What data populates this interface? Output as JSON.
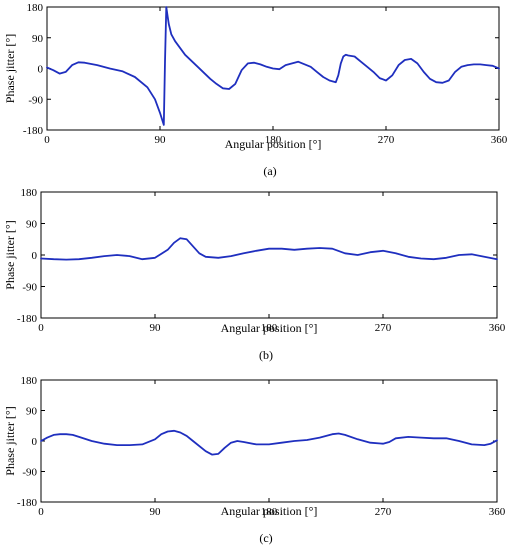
{
  "figure": {
    "caption_labels": [
      "(a)",
      "(b)",
      "(c)"
    ],
    "line_color": "#1f2fbf"
  },
  "chart_data": [
    {
      "type": "line",
      "panel_label": "(a)",
      "xlabel": "Angular position [°]",
      "ylabel": "Phase jitter [°]",
      "xlim": [
        0,
        360
      ],
      "ylim": [
        -180,
        180
      ],
      "xticks": [
        0,
        90,
        180,
        270,
        360
      ],
      "yticks": [
        180,
        90,
        0,
        -90,
        -180
      ],
      "grid": false,
      "series": [
        {
          "x": [
            0,
            5,
            10,
            15,
            20,
            25,
            30,
            40,
            50,
            60,
            70,
            80,
            86,
            90,
            93,
            94,
            95,
            96,
            97,
            99,
            102,
            110,
            120,
            130,
            135,
            140,
            145,
            150,
            155,
            160,
            165,
            170,
            175,
            180,
            185,
            190,
            200,
            210,
            215,
            220,
            225,
            230,
            232,
            234,
            236,
            238,
            240,
            245,
            250,
            255,
            260,
            265,
            270,
            275,
            280,
            285,
            290,
            295,
            300,
            305,
            310,
            315,
            320,
            325,
            330,
            335,
            340,
            345,
            350,
            355,
            360
          ],
          "y": [
            3,
            -5,
            -15,
            -10,
            10,
            18,
            17,
            10,
            0,
            -8,
            -25,
            -55,
            -90,
            -130,
            -165,
            20,
            180,
            155,
            130,
            100,
            80,
            40,
            5,
            -30,
            -45,
            -58,
            -60,
            -45,
            -5,
            15,
            17,
            12,
            5,
            0,
            -2,
            10,
            20,
            5,
            -10,
            -25,
            -35,
            -40,
            -20,
            15,
            35,
            40,
            38,
            35,
            20,
            5,
            -10,
            -28,
            -35,
            -20,
            10,
            25,
            28,
            15,
            -10,
            -30,
            -40,
            -42,
            -35,
            -10,
            5,
            10,
            12,
            12,
            10,
            8,
            0
          ]
        }
      ]
    },
    {
      "type": "line",
      "panel_label": "(b)",
      "xlabel": "Angular position [°]",
      "ylabel": "Phase jitter [°]",
      "xlim": [
        0,
        360
      ],
      "ylim": [
        -180,
        180
      ],
      "xticks": [
        0,
        90,
        180,
        270,
        360
      ],
      "yticks": [
        180,
        90,
        0,
        -90,
        -180
      ],
      "grid": false,
      "series": [
        {
          "x": [
            0,
            10,
            20,
            30,
            40,
            50,
            60,
            70,
            80,
            90,
            100,
            105,
            110,
            115,
            120,
            125,
            130,
            140,
            150,
            160,
            170,
            180,
            190,
            200,
            210,
            220,
            230,
            240,
            250,
            260,
            270,
            280,
            290,
            300,
            310,
            320,
            330,
            340,
            350,
            360
          ],
          "y": [
            -10,
            -12,
            -13,
            -12,
            -8,
            -3,
            0,
            -3,
            -12,
            -8,
            15,
            35,
            48,
            45,
            25,
            5,
            -5,
            -8,
            -3,
            5,
            12,
            18,
            18,
            15,
            18,
            20,
            18,
            5,
            0,
            8,
            12,
            5,
            -5,
            -10,
            -12,
            -8,
            0,
            2,
            -5,
            -12
          ]
        }
      ]
    },
    {
      "type": "line",
      "panel_label": "(c)",
      "xlabel": "Angular position [°]",
      "ylabel": "Phase jitter [°]",
      "xlim": [
        0,
        360
      ],
      "ylim": [
        -180,
        180
      ],
      "xticks": [
        0,
        90,
        180,
        270,
        360
      ],
      "yticks": [
        180,
        90,
        0,
        -90,
        -180
      ],
      "grid": false,
      "series": [
        {
          "x": [
            0,
            5,
            10,
            15,
            20,
            25,
            30,
            40,
            50,
            60,
            70,
            80,
            90,
            95,
            100,
            105,
            110,
            115,
            120,
            130,
            135,
            140,
            145,
            150,
            155,
            160,
            170,
            180,
            190,
            200,
            210,
            220,
            230,
            235,
            240,
            250,
            260,
            270,
            275,
            280,
            290,
            300,
            310,
            320,
            330,
            340,
            350,
            355,
            360
          ],
          "y": [
            0,
            10,
            18,
            20,
            20,
            18,
            12,
            0,
            -8,
            -12,
            -12,
            -10,
            5,
            20,
            28,
            30,
            25,
            15,
            0,
            -30,
            -40,
            -38,
            -20,
            -5,
            0,
            -3,
            -10,
            -10,
            -5,
            0,
            3,
            10,
            20,
            22,
            18,
            5,
            -5,
            -8,
            -3,
            8,
            12,
            10,
            8,
            8,
            0,
            -10,
            -12,
            -8,
            2
          ]
        }
      ]
    }
  ]
}
